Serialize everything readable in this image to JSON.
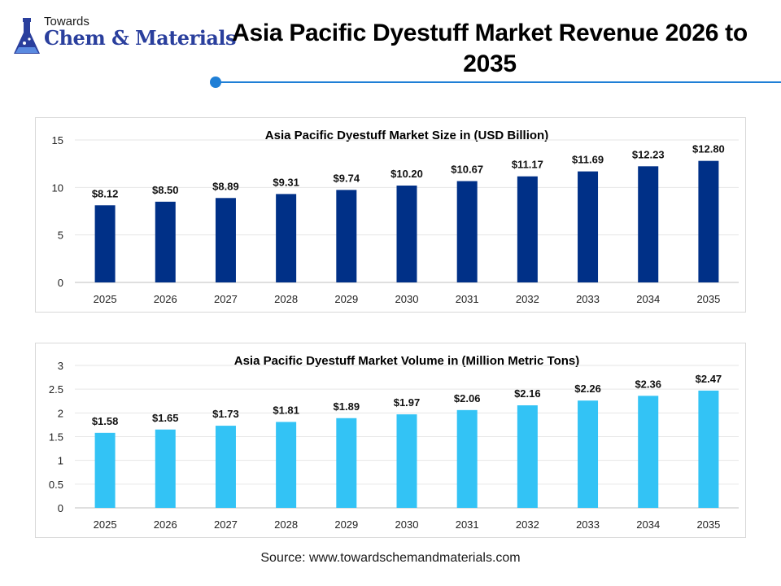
{
  "header": {
    "logo_top": "Towards",
    "logo_main": "Chem & Materials",
    "title": "Asia Pacific Dyestuff Market Revenue 2026 to 2035"
  },
  "source": "Source: www.towardschemandmaterials.com",
  "colors": {
    "accent": "#1f7fd6",
    "size_bar": "#003087",
    "volume_bar": "#33c3f5"
  },
  "chart_data": [
    {
      "type": "bar",
      "title": "Asia Pacific Dyestuff Market Size in (USD Billion)",
      "categories": [
        "2025",
        "2026",
        "2027",
        "2028",
        "2029",
        "2030",
        "2031",
        "2032",
        "2033",
        "2034",
        "2035"
      ],
      "values": [
        8.12,
        8.5,
        8.89,
        9.31,
        9.74,
        10.2,
        10.67,
        11.17,
        11.69,
        12.23,
        12.8
      ],
      "data_labels": [
        "$8.12",
        "$8.50",
        "$8.89",
        "$9.31",
        "$9.74",
        "$10.20",
        "$10.67",
        "$11.17",
        "$11.69",
        "$12.23",
        "$12.80"
      ],
      "yticks": [
        "0",
        "5",
        "10",
        "15"
      ],
      "ylim": [
        0,
        15
      ],
      "grid": true,
      "color": "#003087"
    },
    {
      "type": "bar",
      "title": "Asia Pacific Dyestuff Market Volume in (Million Metric Tons)",
      "categories": [
        "2025",
        "2026",
        "2027",
        "2028",
        "2029",
        "2030",
        "2031",
        "2032",
        "2033",
        "2034",
        "2035"
      ],
      "values": [
        1.58,
        1.65,
        1.73,
        1.81,
        1.89,
        1.97,
        2.06,
        2.16,
        2.26,
        2.36,
        2.47
      ],
      "data_labels": [
        "$1.58",
        "$1.65",
        "$1.73",
        "$1.81",
        "$1.89",
        "$1.97",
        "$2.06",
        "$2.16",
        "$2.26",
        "$2.36",
        "$2.47"
      ],
      "yticks": [
        "0",
        "0.5",
        "1",
        "1.5",
        "2",
        "2.5",
        "3"
      ],
      "ylim": [
        0,
        3
      ],
      "grid": true,
      "color": "#33c3f5"
    }
  ]
}
